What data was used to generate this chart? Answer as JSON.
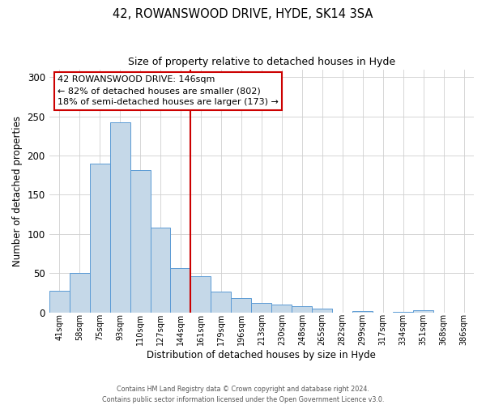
{
  "title": "42, ROWANSWOOD DRIVE, HYDE, SK14 3SA",
  "subtitle": "Size of property relative to detached houses in Hyde",
  "xlabel": "Distribution of detached houses by size in Hyde",
  "ylabel": "Number of detached properties",
  "bar_labels": [
    "41sqm",
    "58sqm",
    "75sqm",
    "93sqm",
    "110sqm",
    "127sqm",
    "144sqm",
    "161sqm",
    "179sqm",
    "196sqm",
    "213sqm",
    "230sqm",
    "248sqm",
    "265sqm",
    "282sqm",
    "299sqm",
    "317sqm",
    "334sqm",
    "351sqm",
    "368sqm",
    "386sqm"
  ],
  "bar_values": [
    28,
    50,
    190,
    242,
    181,
    108,
    56,
    46,
    27,
    18,
    12,
    10,
    8,
    5,
    0,
    2,
    0,
    1,
    3,
    0,
    0
  ],
  "bar_color": "#c5d8e8",
  "bar_edge_color": "#5b9bd5",
  "vline_color": "#cc0000",
  "ylim": [
    0,
    310
  ],
  "yticks": [
    0,
    50,
    100,
    150,
    200,
    250,
    300
  ],
  "annotation_title": "42 ROWANSWOOD DRIVE: 146sqm",
  "annotation_line1": "← 82% of detached houses are smaller (802)",
  "annotation_line2": "18% of semi-detached houses are larger (173) →",
  "annotation_box_color": "#cc0000",
  "footer1": "Contains HM Land Registry data © Crown copyright and database right 2024.",
  "footer2": "Contains public sector information licensed under the Open Government Licence v3.0."
}
